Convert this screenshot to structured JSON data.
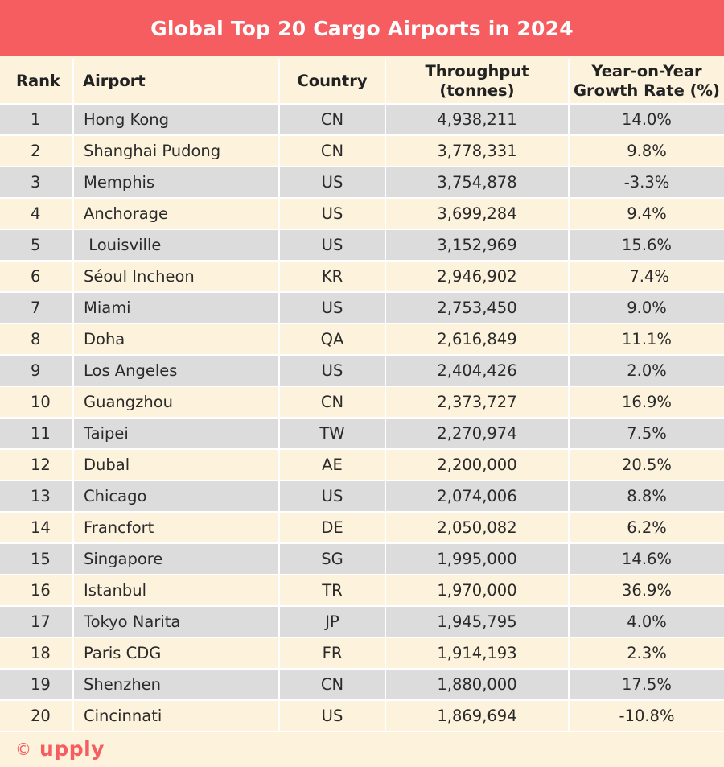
{
  "title": "Global Top 20 Cargo Airports in 2024",
  "headers": {
    "rank": "Rank",
    "airport": "Airport",
    "country": "Country",
    "throughput_line1": "Throughput",
    "throughput_line2": "(tonnes)",
    "growth_line1": "Year-on-Year",
    "growth_line2": "Growth Rate (%)"
  },
  "rows": [
    {
      "rank": "1",
      "airport": "Hong Kong",
      "country": "CN",
      "throughput": "4,938,211",
      "growth": "14.0%"
    },
    {
      "rank": "2",
      "airport": "Shanghai Pudong",
      "country": "CN",
      "throughput": "3,778,331",
      "growth": "9.8%"
    },
    {
      "rank": "3",
      "airport": "Memphis",
      "country": "US",
      "throughput": "3,754,878",
      "growth": "-3.3%"
    },
    {
      "rank": "4",
      "airport": "Anchorage",
      "country": "US",
      "throughput": "3,699,284",
      "growth": "9.4%"
    },
    {
      "rank": "5",
      "airport": " Louisville",
      "country": "US",
      "throughput": "3,152,969",
      "growth": "15.6%"
    },
    {
      "rank": "6",
      "airport": "Séoul Incheon",
      "country": "KR",
      "throughput": "2,946,902",
      "growth": " 7.4%"
    },
    {
      "rank": "7",
      "airport": "Miami",
      "country": "US",
      "throughput": "2,753,450",
      "growth": "9.0%"
    },
    {
      "rank": "8",
      "airport": "Doha",
      "country": "QA",
      "throughput": "2,616,849",
      "growth": "11.1%"
    },
    {
      "rank": "9",
      "airport": "Los Angeles",
      "country": "US",
      "throughput": "2,404,426",
      "growth": "2.0%"
    },
    {
      "rank": "10",
      "airport": "Guangzhou",
      "country": "CN",
      "throughput": "2,373,727",
      "growth": "16.9%"
    },
    {
      "rank": "11",
      "airport": "Taipei",
      "country": "TW",
      "throughput": "2,270,974",
      "growth": "7.5%"
    },
    {
      "rank": "12",
      "airport": "Dubal",
      "country": "AE",
      "throughput": "2,200,000",
      "growth": "20.5%"
    },
    {
      "rank": "13",
      "airport": "Chicago",
      "country": "US",
      "throughput": "2,074,006",
      "growth": "8.8%"
    },
    {
      "rank": "14",
      "airport": "Francfort",
      "country": "DE",
      "throughput": "2,050,082",
      "growth": "6.2%"
    },
    {
      "rank": "15",
      "airport": "Singapore",
      "country": "SG",
      "throughput": "1,995,000",
      "growth": "14.6%"
    },
    {
      "rank": "16",
      "airport": "Istanbul",
      "country": "TR",
      "throughput": "1,970,000",
      "growth": "36.9%"
    },
    {
      "rank": "17",
      "airport": "Tokyo Narita",
      "country": "JP",
      "throughput": "1,945,795",
      "growth": "4.0%"
    },
    {
      "rank": "18",
      "airport": "Paris CDG",
      "country": "FR",
      "throughput": "1,914,193",
      "growth": "2.3%"
    },
    {
      "rank": "19",
      "airport": "Shenzhen",
      "country": "CN",
      "throughput": "1,880,000",
      "growth": "17.5%"
    },
    {
      "rank": "20",
      "airport": "Cincinnati",
      "country": "US",
      "throughput": "1,869,694",
      "growth": "-10.8%"
    }
  ],
  "footer": {
    "copyright": "©",
    "brand": "upply"
  },
  "colors": {
    "accent": "#f55d61",
    "background": "#fdf3dc",
    "row_shade": "#dcdcdc"
  }
}
